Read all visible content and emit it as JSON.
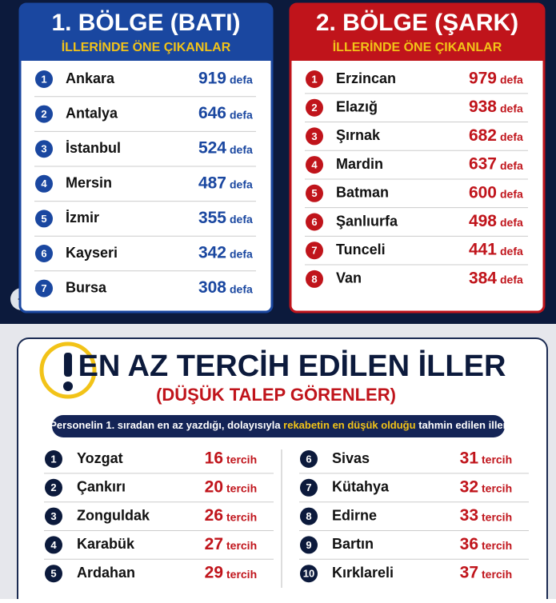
{
  "panels": [
    {
      "title": "1. BÖLGE (BATI)",
      "subtitle": "İLLERİNDE ÖNE ÇIKANLAR",
      "unit": "defa",
      "rows": [
        {
          "rank": 1,
          "city": "Ankara",
          "count": 919
        },
        {
          "rank": 2,
          "city": "Antalya",
          "count": 646
        },
        {
          "rank": 3,
          "city": "İstanbul",
          "count": 524
        },
        {
          "rank": 4,
          "city": "Mersin",
          "count": 487
        },
        {
          "rank": 5,
          "city": "İzmir",
          "count": 355
        },
        {
          "rank": 6,
          "city": "Kayseri",
          "count": 342
        },
        {
          "rank": 7,
          "city": "Bursa",
          "count": 308
        }
      ]
    },
    {
      "title": "2. BÖLGE (ŞARK)",
      "subtitle": "İLLERİNDE ÖNE ÇIKANLAR",
      "unit": "defa",
      "rows": [
        {
          "rank": 1,
          "city": "Erzincan",
          "count": 979
        },
        {
          "rank": 2,
          "city": "Elazığ",
          "count": 938
        },
        {
          "rank": 3,
          "city": "Şırnak",
          "count": 682
        },
        {
          "rank": 4,
          "city": "Mardin",
          "count": 637
        },
        {
          "rank": 5,
          "city": "Batman",
          "count": 600
        },
        {
          "rank": 6,
          "city": "Şanlıurfa",
          "count": 498
        },
        {
          "rank": 7,
          "city": "Tunceli",
          "count": 441
        },
        {
          "rank": 8,
          "city": "Van",
          "count": 384
        }
      ]
    }
  ],
  "least": {
    "title": "EN AZ TERCİH EDİLEN İLLER",
    "subtitle": "(DÜŞÜK TALEP GÖRENLER)",
    "note": [
      "Personelin 1. sıradan en az yazdığı, dolayısıyla ",
      "rekabetin en düşük olduğu",
      " tahmin edilen iller"
    ],
    "unit": "tercih",
    "rows": [
      {
        "rank": 1,
        "city": "Yozgat",
        "count": 16
      },
      {
        "rank": 2,
        "city": "Çankırı",
        "count": 20
      },
      {
        "rank": 3,
        "city": "Zonguldak",
        "count": 26
      },
      {
        "rank": 4,
        "city": "Karabük",
        "count": 27
      },
      {
        "rank": 5,
        "city": "Ardahan",
        "count": 29
      },
      {
        "rank": 6,
        "city": "Sivas",
        "count": 31
      },
      {
        "rank": 7,
        "city": "Kütahya",
        "count": 32
      },
      {
        "rank": 8,
        "city": "Edirne",
        "count": 33
      },
      {
        "rank": 9,
        "city": "Bartın",
        "count": 36
      },
      {
        "rank": 10,
        "city": "Kırklareli",
        "count": 37
      }
    ]
  }
}
